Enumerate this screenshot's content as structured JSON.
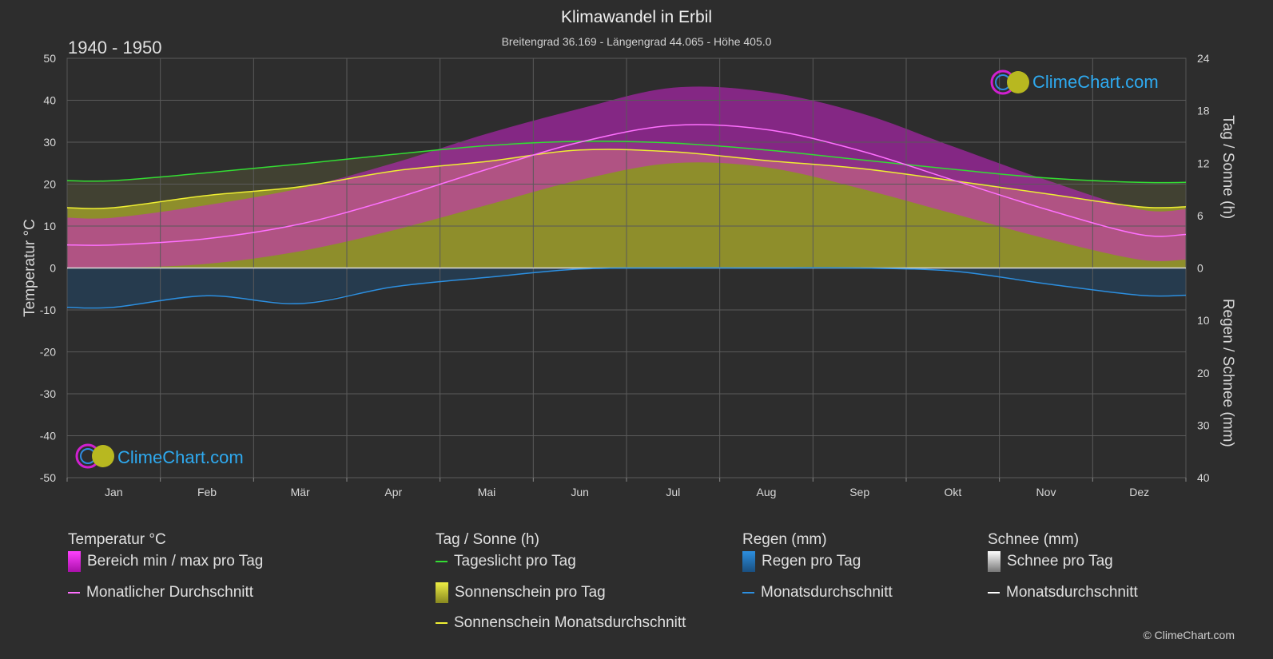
{
  "title": "Klimawandel in Erbil",
  "subtitle": "Breitengrad 36.169 - Längengrad 44.065 - Höhe 405.0",
  "period": "1940 - 1950",
  "brand": "ClimeChart.com",
  "copyright": "© ClimeChart.com",
  "colors": {
    "background": "#2d2d2d",
    "daylight": "#33dd33",
    "sunshine_avg": "#eeee33",
    "sunshine_fill": "#a8a82a",
    "temp_avg": "#ff70ff",
    "temp_range": "#cc22cc",
    "rain": "#2c8fe0",
    "snow": "#ffffff"
  },
  "legend": {
    "temp": {
      "heading": "Temperatur °C",
      "range": "Bereich min / max pro Tag",
      "avg": "Monatlicher Durchschnitt"
    },
    "sun": {
      "heading": "Tag / Sonne (h)",
      "daylight": "Tageslicht pro Tag",
      "sunshine": "Sonnenschein pro Tag",
      "sunshine_avg": "Sonnenschein Monatsdurchschnitt"
    },
    "rain": {
      "heading": "Regen (mm)",
      "per_day": "Regen pro Tag",
      "avg": "Monatsdurchschnitt"
    },
    "snow": {
      "heading": "Schnee (mm)",
      "per_day": "Schnee pro Tag",
      "avg": "Monatsdurchschnitt"
    }
  },
  "chart_data": {
    "type": "area",
    "categories": [
      "Jan",
      "Feb",
      "Mär",
      "Apr",
      "Mai",
      "Jun",
      "Jul",
      "Aug",
      "Sep",
      "Okt",
      "Nov",
      "Dez"
    ],
    "left_axis": {
      "label": "Temperatur °C",
      "ylim": [
        -50,
        50
      ],
      "ticks": [
        50,
        40,
        30,
        20,
        10,
        0,
        -10,
        -20,
        -30,
        -40,
        -50
      ]
    },
    "right_axis_top": {
      "label": "Tag / Sonne (h)",
      "ylim": [
        0,
        24
      ],
      "ticks": [
        24,
        18,
        12,
        6,
        0
      ]
    },
    "right_axis_bottom": {
      "label": "Regen / Schnee (mm)",
      "ylim": [
        0,
        40
      ],
      "ticks": [
        0,
        10,
        20,
        30,
        40
      ]
    },
    "grid": true,
    "series": [
      {
        "name": "Tageslicht pro Tag",
        "axis": "hours",
        "values": [
          10.0,
          10.9,
          11.9,
          13.0,
          14.0,
          14.5,
          14.3,
          13.5,
          12.4,
          11.3,
          10.3,
          9.8
        ]
      },
      {
        "name": "Sonnenschein Monatsdurchschnitt",
        "axis": "hours",
        "values": [
          6.9,
          8.3,
          9.3,
          11.1,
          12.2,
          13.5,
          13.3,
          12.3,
          11.4,
          10.0,
          8.5,
          7.0
        ]
      },
      {
        "name": "Monatlicher Durchschnitt",
        "axis": "temp",
        "values": [
          5.5,
          7.0,
          10.5,
          16.5,
          23.5,
          30.0,
          34.0,
          33.0,
          28.0,
          21.0,
          14.0,
          8.0
        ]
      },
      {
        "name": "Temperatur max",
        "axis": "temp",
        "values": [
          12,
          15,
          19,
          25,
          32,
          38,
          43,
          42,
          37,
          29,
          21,
          14
        ]
      },
      {
        "name": "Temperatur min",
        "axis": "temp",
        "values": [
          0,
          1,
          4,
          9,
          15,
          21,
          25,
          24,
          19,
          13,
          7,
          2
        ]
      },
      {
        "name": "Regen Monatsdurchschnitt",
        "axis": "mm",
        "values": [
          7.5,
          5.3,
          6.8,
          3.6,
          1.8,
          0.2,
          0.0,
          0.0,
          0.0,
          0.6,
          3.0,
          5.2
        ]
      },
      {
        "name": "Schnee Monatsdurchschnitt",
        "axis": "mm",
        "values": [
          0,
          0,
          0,
          0,
          0,
          0,
          0,
          0,
          0,
          0,
          0,
          0
        ]
      }
    ]
  }
}
